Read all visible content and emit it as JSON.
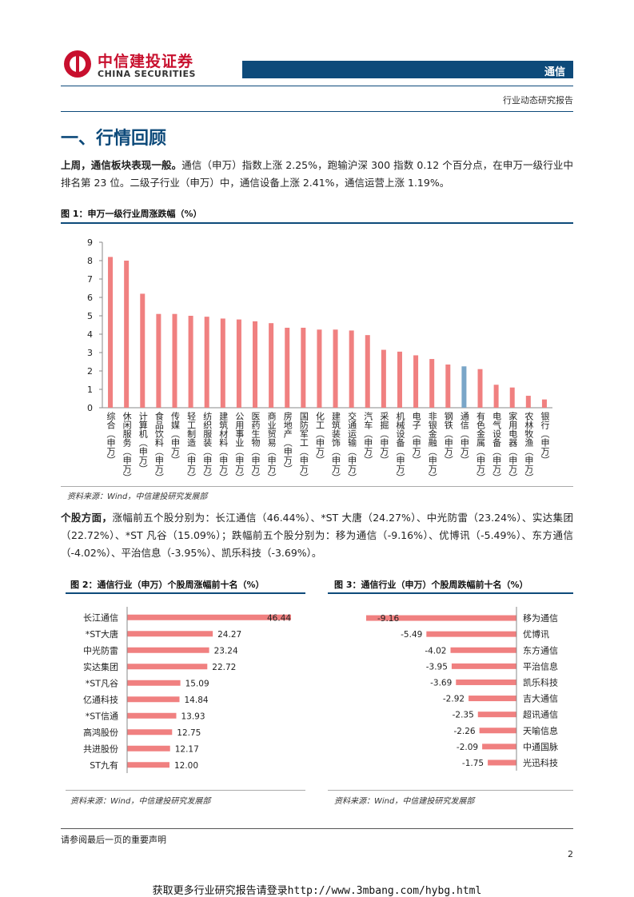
{
  "header": {
    "brand_cn": "中信建投证券",
    "brand_en": "CHINA SECURITIES",
    "category": "通信",
    "report_type": "行业动态研究报告"
  },
  "section_title": "一、行情回顾",
  "para1": {
    "lead": "上周，通信板块表现一般。",
    "text": "通信（申万）指数上涨 2.25%，跑输沪深 300 指数 0.12 个百分点，在申万一级行业中排名第 23 位。二级子行业（申万）中，通信设备上涨 2.41%，通信运营上涨 1.19%。"
  },
  "fig1": {
    "title": "图 1：申万一级行业周涨跌幅（%）",
    "source": "资料来源：Wind，中信建投研究发展部"
  },
  "para2": {
    "lead": "个股方面，",
    "text": "涨幅前五个股分别为：长江通信（46.44%）、*ST 大唐（24.27%）、中光防雷（23.24%）、实达集团（22.72%）、*ST 凡谷（15.09%）；跌幅前五个股分别为：移为通信（-9.16%）、优博讯（-5.49%）、东方通信（-4.02%）、平治信息（-3.95%）、凯乐科技（-3.69%）。"
  },
  "fig2": {
    "title": "图 2：通信行业（申万）个股周涨幅前十名（%）",
    "source": "资料来源：Wind，中信建投研究发展部"
  },
  "fig3": {
    "title": "图 3：通信行业（申万）个股周跌幅前十名（%）",
    "source": "资料来源：Wind，中信建投研究发展部"
  },
  "footer": {
    "disclaimer": "请参阅最后一页的重要声明",
    "page": "2",
    "link": "获取更多行业研究报告请登录http://www.3mbang.com/hybg.html"
  },
  "chart_data": [
    {
      "type": "bar",
      "categories": [
        "综合(申万)",
        "休闲服务(申万)",
        "计算机(申万)",
        "食品饮料(申万)",
        "传媒(申万)",
        "轻工制造(申万)",
        "纺织服装(申万)",
        "建筑材料(申万)",
        "公用事业(申万)",
        "医药生物(申万)",
        "商业贸易(申万)",
        "房地产(申万)",
        "国防军工(申万)",
        "化工(申万)",
        "建筑装饰(申万)",
        "交通运输(申万)",
        "汽车(申万)",
        "采掘(申万)",
        "机械设备(申万)",
        "电子(申万)",
        "非银金融(申万)",
        "钢铁(申万)",
        "通信(申万)",
        "有色金属(申万)",
        "电气设备(申万)",
        "家用电器(申万)",
        "农林牧渔(申万)",
        "银行(申万)"
      ],
      "values": [
        8.2,
        8.0,
        6.2,
        5.1,
        5.1,
        5.0,
        4.95,
        4.85,
        4.8,
        4.7,
        4.6,
        4.35,
        4.35,
        4.25,
        4.25,
        4.2,
        3.95,
        3.15,
        3.05,
        2.85,
        2.65,
        2.35,
        2.25,
        2.1,
        1.25,
        1.1,
        0.65,
        0.45
      ],
      "ylim": [
        0,
        9
      ],
      "yticks": [
        0,
        1,
        2,
        3,
        4,
        5,
        6,
        7,
        8,
        9
      ],
      "highlight": "通信(申万)",
      "bar_color": "#f08080",
      "highlight_color": "#7aa6c8"
    },
    {
      "type": "bar",
      "orientation": "horizontal",
      "categories": [
        "长江通信",
        "*ST大唐",
        "中光防雷",
        "实达集团",
        "*ST凡谷",
        "亿通科技",
        "*ST信通",
        "高鸿股份",
        "共进股份",
        "ST九有"
      ],
      "values": [
        46.44,
        24.27,
        23.24,
        22.72,
        15.09,
        14.84,
        13.93,
        12.75,
        12.17,
        12.0
      ],
      "labels": [
        "46.44",
        "24.27",
        "23.24",
        "22.72",
        "15.09",
        "14.84",
        "13.93",
        "12.75",
        "12.17",
        "12.00"
      ],
      "bar_color": "#f08080"
    },
    {
      "type": "bar",
      "orientation": "horizontal",
      "categories": [
        "移为通信",
        "优博讯",
        "东方通信",
        "平治信息",
        "凯乐科技",
        "吉大通信",
        "超讯通信",
        "天喻信息",
        "中通国脉",
        "光迅科技"
      ],
      "values": [
        -9.16,
        -5.49,
        -4.02,
        -3.95,
        -3.69,
        -2.92,
        -2.35,
        -2.26,
        -2.09,
        -1.75
      ],
      "labels": [
        "-9.16",
        "-5.49",
        "-4.02",
        "-3.95",
        "-3.69",
        "-2.92",
        "-2.35",
        "-2.26",
        "-2.09",
        "-1.75"
      ],
      "bar_color": "#f08080"
    }
  ]
}
